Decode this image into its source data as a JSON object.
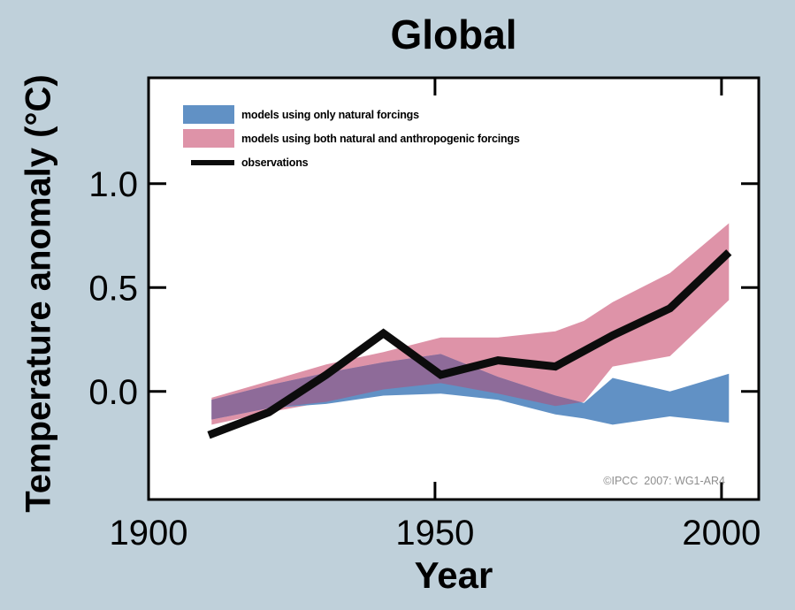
{
  "title": "Global",
  "axis": {
    "x_title": "Year",
    "y_title": "Temperature anomaly (°C)"
  },
  "attribution": "©IPCC  2007: WG1-AR4",
  "colors": {
    "background": "#BFD0DA",
    "plot_bg": "#FFFFFF",
    "natural_band": "#6191C5",
    "combined_band": "#DE93A8",
    "overlap_band": "#8E6B99",
    "observations": "#0C0C0C",
    "frame": "#000000",
    "attribution_text": "#8E8E8E"
  },
  "legend": [
    {
      "label": "models using only natural forcings",
      "color_key": "natural_band",
      "swatch": "band"
    },
    {
      "label": "models using both natural and anthropogenic forcings",
      "color_key": "combined_band",
      "swatch": "band"
    },
    {
      "label": "observations",
      "color_key": "observations",
      "swatch": "line"
    }
  ],
  "chart_data": {
    "type": "area",
    "title": "Global",
    "xlabel": "Year",
    "ylabel": "Temperature anomaly (°C)",
    "xlim": [
      1900,
      2006.5
    ],
    "ylim": [
      -0.52,
      1.51
    ],
    "grid": false,
    "legend_position": "upper-left-inside",
    "x_ticks": [
      {
        "value": 1900,
        "label": "1900"
      },
      {
        "value": 1950,
        "label": "1950"
      },
      {
        "value": 2000,
        "label": "2000"
      }
    ],
    "y_ticks": [
      {
        "value": 0.0,
        "label": "0.0"
      },
      {
        "value": 0.5,
        "label": "0.5"
      },
      {
        "value": 1.0,
        "label": "1.0"
      }
    ],
    "band_years": [
      1911,
      1921,
      1931,
      1941,
      1951,
      1961,
      1971,
      1976,
      1981,
      1991,
      2001.3
    ],
    "series": [
      {
        "name": "models using only natural forcings",
        "type": "band",
        "color_key": "natural_band",
        "upper": [
          -0.04,
          0.03,
          0.09,
          0.14,
          0.18,
          0.07,
          -0.02,
          -0.055,
          0.065,
          0.0,
          0.085
        ],
        "lower": [
          -0.135,
          -0.08,
          -0.06,
          -0.02,
          -0.01,
          -0.04,
          -0.11,
          -0.13,
          -0.16,
          -0.12,
          -0.15
        ]
      },
      {
        "name": "models using both natural and anthropogenic forcings",
        "type": "band",
        "color_key": "combined_band",
        "upper": [
          -0.03,
          0.05,
          0.13,
          0.19,
          0.26,
          0.26,
          0.29,
          0.34,
          0.43,
          0.57,
          0.81
        ],
        "lower": [
          -0.16,
          -0.1,
          -0.05,
          0.01,
          0.04,
          -0.01,
          -0.07,
          -0.05,
          0.12,
          0.17,
          0.44
        ]
      },
      {
        "name": "observations",
        "type": "line",
        "color_key": "observations",
        "x": [
          1910.5,
          1921,
          1931,
          1941,
          1951,
          1961,
          1971,
          1981,
          1991,
          2001.3
        ],
        "y": [
          -0.21,
          -0.1,
          0.08,
          0.28,
          0.08,
          0.15,
          0.12,
          0.27,
          0.4,
          0.67
        ]
      }
    ]
  }
}
